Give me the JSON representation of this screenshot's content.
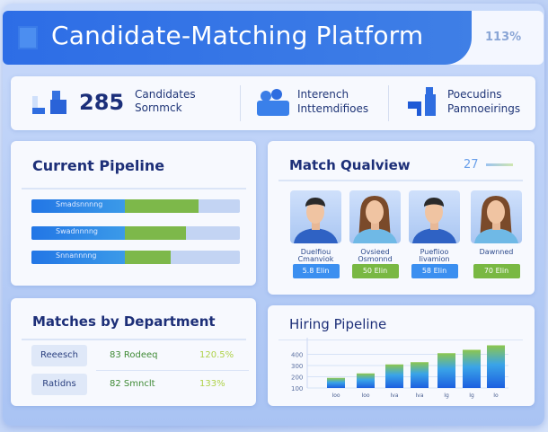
{
  "header": {
    "title": "Candidate-Matching Platform",
    "zoom": "113%"
  },
  "stats": [
    {
      "icon": "candidates-icon",
      "value": "285",
      "line1": "Candidates",
      "line2": "Sornmck"
    },
    {
      "icon": "interviews-icon",
      "line1": "Interench",
      "line2": "Inttemdifioes"
    },
    {
      "icon": "openings-icon",
      "line1": "Poecudins",
      "line2": "Pamnoeirings"
    }
  ],
  "pipeline": {
    "title": "Current Pipeline",
    "bars": [
      {
        "label": "Smadsnnnng",
        "blue": 0.45,
        "green": 0.35
      },
      {
        "label": "Swadnnnng",
        "blue": 0.45,
        "green": 0.29
      },
      {
        "label": "Snnannnng",
        "blue": 0.45,
        "green": 0.22
      }
    ]
  },
  "match": {
    "title": "Match Qualview",
    "count": "27",
    "candidates": [
      {
        "name": "Duelfiou Cmanviok",
        "score": "5.8 Elin",
        "color": "#3b8ff0"
      },
      {
        "name": "Ovsieed Osmonnd",
        "score": "50 Elin",
        "color": "#79b843"
      },
      {
        "name": "Pueflioo Iivamion",
        "score": "58 Elin",
        "color": "#3b8ff0"
      },
      {
        "name": "Dawnned",
        "score": "70 Elin",
        "color": "#79b843"
      }
    ]
  },
  "departments": {
    "title": "Matches by Department",
    "rows": [
      {
        "name": "Reeesch",
        "value": "83 Rodeeq",
        "pct": "120.5%"
      },
      {
        "name": "Ratidns",
        "value": "82 Smnclt",
        "pct": "133%"
      }
    ]
  },
  "chart_data": {
    "type": "bar",
    "title": "Hiring Pipeline",
    "yticks": [
      "400",
      "300",
      "200",
      "100"
    ],
    "ylim": [
      100,
      500
    ],
    "categories": [
      "Ioo",
      "Ioo",
      "Iva",
      "Iva",
      "Ig",
      "Ig",
      "Io"
    ],
    "values": [
      190,
      230,
      310,
      330,
      410,
      440,
      480
    ]
  }
}
